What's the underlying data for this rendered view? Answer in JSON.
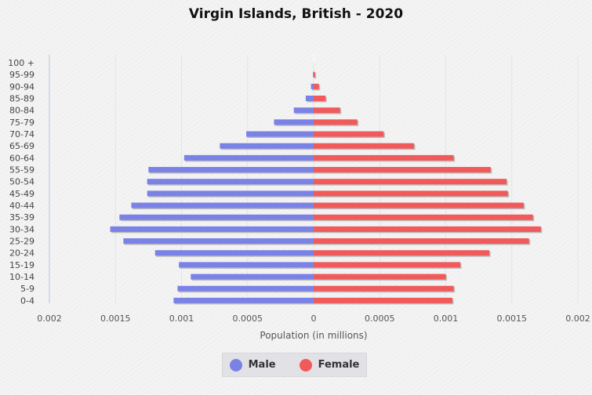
{
  "title": "Virgin Islands, British - 2020",
  "chart_data": {
    "type": "bar",
    "orientation": "horizontal-pyramid",
    "title": "Virgin Islands, British - 2020",
    "xlabel": "Population (in millions)",
    "ylabel": "",
    "xlim": [
      -0.002,
      0.002
    ],
    "x_ticks": [
      "0.002",
      "0.0015",
      "0.001",
      "0.0005",
      "0",
      "0.0005",
      "0.001",
      "0.0015",
      "0.002"
    ],
    "categories": [
      "0-4",
      "5-9",
      "10-14",
      "15-19",
      "20-24",
      "25-29",
      "30-34",
      "35-39",
      "40-44",
      "45-49",
      "50-54",
      "55-59",
      "60-64",
      "65-69",
      "70-74",
      "75-79",
      "80-84",
      "85-89",
      "90-94",
      "95-99",
      "100 +"
    ],
    "series": [
      {
        "name": "Male",
        "color": "#7b82e6",
        "values": [
          0.00106,
          0.00103,
          0.00093,
          0.00102,
          0.0012,
          0.00144,
          0.00154,
          0.00147,
          0.00138,
          0.00126,
          0.00126,
          0.00125,
          0.00098,
          0.00071,
          0.00051,
          0.0003,
          0.00015,
          6e-05,
          2e-05,
          5e-06,
          0.0
        ]
      },
      {
        "name": "Female",
        "color": "#f05a5a",
        "values": [
          0.00105,
          0.00106,
          0.001,
          0.00111,
          0.00133,
          0.00163,
          0.00172,
          0.00166,
          0.00159,
          0.00147,
          0.00146,
          0.00134,
          0.00106,
          0.00076,
          0.00053,
          0.00033,
          0.0002,
          9e-05,
          4e-05,
          1e-05,
          0.0
        ]
      }
    ],
    "grid": true,
    "legend_position": "bottom"
  },
  "legend": {
    "male": "Male",
    "female": "Female"
  }
}
